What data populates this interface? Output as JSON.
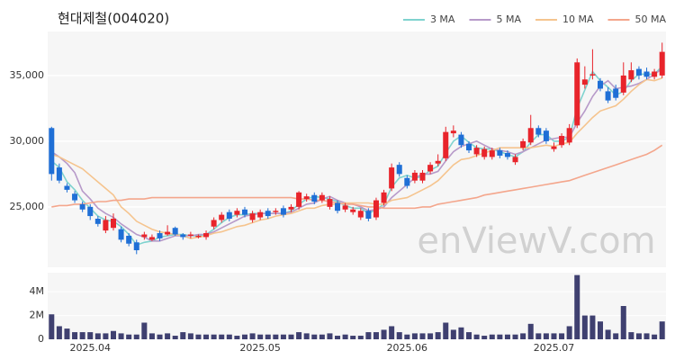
{
  "chart_data": {
    "type": "candlestick",
    "title": "현대제철(004020)",
    "watermark": "enViewV.com",
    "categories": [
      null,
      null,
      null,
      null,
      null,
      "2025.04",
      null,
      null,
      null,
      null,
      null,
      null,
      null,
      null,
      null,
      null,
      null,
      null,
      null,
      null,
      null,
      null,
      null,
      null,
      null,
      null,
      null,
      "2025.05",
      null,
      null,
      null,
      null,
      null,
      null,
      null,
      null,
      null,
      null,
      null,
      null,
      null,
      null,
      null,
      null,
      null,
      null,
      "2025.06",
      null,
      null,
      null,
      null,
      null,
      null,
      null,
      null,
      null,
      null,
      null,
      null,
      null,
      null,
      null,
      null,
      null,
      null,
      "2025.07",
      null,
      null,
      null,
      null,
      null,
      null,
      null,
      null,
      null,
      null,
      null,
      null,
      null,
      null
    ],
    "open": [
      31000,
      28000,
      26600,
      26000,
      25200,
      25000,
      24100,
      23200,
      23400,
      23300,
      22800,
      22300,
      22700,
      22500,
      23000,
      22900,
      23400,
      22900,
      22800,
      22700,
      22700,
      23500,
      24000,
      24600,
      24400,
      24800,
      24000,
      24200,
      24700,
      24600,
      24900,
      24800,
      25000,
      25600,
      25900,
      25500,
      25000,
      25300,
      24800,
      24600,
      24200,
      24700,
      24200,
      25300,
      26400,
      28200,
      27200,
      27000,
      27000,
      27700,
      28300,
      28700,
      30600,
      30500,
      29800,
      29000,
      28800,
      28800,
      29300,
      29100,
      28400,
      29500,
      29900,
      31000,
      30800,
      29400,
      29700,
      29900,
      31200,
      34300,
      35000,
      34600,
      33800,
      34000,
      33700,
      34700,
      35500,
      35300,
      34900,
      35000
    ],
    "high": [
      31100,
      28300,
      26800,
      26200,
      25400,
      25200,
      24300,
      24300,
      24500,
      23500,
      23000,
      22500,
      23100,
      22900,
      23200,
      23600,
      23500,
      23000,
      23100,
      22900,
      23200,
      24200,
      24600,
      24800,
      24900,
      25000,
      24700,
      24800,
      24900,
      24900,
      25100,
      25200,
      26200,
      26000,
      26100,
      26100,
      25800,
      25500,
      25300,
      25000,
      24900,
      24900,
      25700,
      26300,
      28300,
      28400,
      27400,
      27800,
      27800,
      28400,
      29000,
      31100,
      31200,
      30700,
      30000,
      29700,
      29600,
      29500,
      29500,
      29300,
      29000,
      30200,
      32000,
      31200,
      31000,
      29900,
      30600,
      31300,
      36300,
      35700,
      37000,
      34800,
      34100,
      34300,
      36000,
      36000,
      35700,
      35600,
      35500,
      37500
    ],
    "low": [
      27000,
      26800,
      26100,
      25300,
      24600,
      24000,
      23500,
      23000,
      23200,
      22300,
      22000,
      21400,
      22500,
      22400,
      22400,
      22800,
      22800,
      22500,
      22600,
      22600,
      22500,
      23300,
      23800,
      23900,
      24200,
      24200,
      23800,
      24000,
      24100,
      24400,
      24200,
      24600,
      24800,
      25400,
      25200,
      25300,
      24800,
      24500,
      24600,
      24400,
      24000,
      23900,
      24000,
      25100,
      26200,
      27300,
      26400,
      26800,
      26800,
      27500,
      28100,
      28500,
      30300,
      29500,
      29100,
      28800,
      28600,
      28600,
      28700,
      28600,
      28200,
      29300,
      29700,
      30300,
      29800,
      29200,
      29500,
      29700,
      31000,
      34000,
      34700,
      33800,
      32900,
      33100,
      33500,
      34500,
      34700,
      34700,
      34700,
      34800
    ],
    "close": [
      27500,
      27000,
      26300,
      25500,
      24800,
      24300,
      23700,
      24000,
      24100,
      22500,
      22200,
      21700,
      22900,
      22700,
      22600,
      23100,
      22900,
      22700,
      22900,
      22800,
      23000,
      24000,
      24400,
      24100,
      24700,
      24400,
      24500,
      24600,
      24300,
      24700,
      24400,
      25000,
      26100,
      25800,
      25400,
      25900,
      25600,
      24700,
      25100,
      24800,
      24700,
      24100,
      25500,
      26100,
      28000,
      27500,
      26600,
      27600,
      27600,
      28200,
      28500,
      30700,
      30800,
      29700,
      29300,
      29500,
      29400,
      29300,
      28900,
      28800,
      28800,
      30000,
      31000,
      30500,
      30000,
      29600,
      30400,
      31000,
      36000,
      34700,
      35100,
      34000,
      33100,
      33300,
      35000,
      35400,
      35000,
      34900,
      35300,
      36800
    ],
    "up_color": "#e8242b",
    "down_color": "#1f6fd6",
    "series": [
      {
        "name": "3 MA",
        "color": "#7fd3cf",
        "values": [
          28500,
          28000,
          26900,
          26300,
          25500,
          24900,
          24300,
          24000,
          23900,
          23500,
          22900,
          22100,
          22300,
          22400,
          22700,
          22800,
          22900,
          22900,
          22800,
          22800,
          22900,
          23300,
          23800,
          24200,
          24400,
          24400,
          24500,
          24500,
          24500,
          24500,
          24500,
          24700,
          25200,
          25600,
          25800,
          25700,
          25600,
          25400,
          25100,
          24900,
          24900,
          24500,
          24800,
          25200,
          26500,
          27200,
          27400,
          27200,
          27300,
          27800,
          28100,
          29100,
          30000,
          30400,
          29900,
          29500,
          29400,
          29400,
          29200,
          29000,
          28800,
          29200,
          29900,
          30500,
          30500,
          30000,
          30000,
          30300,
          32500,
          33900,
          35300,
          34600,
          34100,
          33500,
          33800,
          34600,
          35100,
          35100,
          35100,
          35700
        ]
      },
      {
        "name": "5 MA",
        "color": "#b79ac9",
        "values": [
          29200,
          28800,
          28300,
          27600,
          26200,
          25600,
          24900,
          24500,
          24200,
          23700,
          23300,
          22900,
          22700,
          22400,
          22400,
          22600,
          22800,
          22800,
          22800,
          22900,
          22900,
          23100,
          23400,
          23700,
          24000,
          24300,
          24400,
          24500,
          24500,
          24500,
          24500,
          24600,
          24900,
          25200,
          25300,
          25600,
          25800,
          25500,
          25300,
          25200,
          25000,
          24700,
          24800,
          25000,
          25700,
          26200,
          26700,
          27200,
          27500,
          27500,
          27700,
          28500,
          29200,
          29600,
          29800,
          30000,
          29700,
          29400,
          29300,
          29200,
          29000,
          29200,
          29500,
          29800,
          30100,
          30200,
          30300,
          30300,
          31400,
          32300,
          33400,
          34200,
          34600,
          34000,
          34100,
          34200,
          34400,
          34700,
          35100,
          35500
        ]
      },
      {
        "name": "10 MA",
        "color": "#f5c48e",
        "values": [
          29000,
          28800,
          28500,
          28200,
          27900,
          27400,
          26900,
          26400,
          25900,
          25000,
          24500,
          23900,
          23600,
          23300,
          23100,
          23000,
          22900,
          22800,
          22600,
          22700,
          22800,
          23000,
          23100,
          23300,
          23500,
          23600,
          23800,
          24000,
          24100,
          24300,
          24400,
          24500,
          24700,
          24900,
          24900,
          25100,
          25200,
          25200,
          25300,
          25300,
          25300,
          25300,
          25200,
          25200,
          25500,
          25600,
          25700,
          26000,
          26300,
          26600,
          27000,
          27600,
          28200,
          28600,
          28700,
          28900,
          29100,
          29300,
          29500,
          29500,
          29500,
          29500,
          29500,
          29600,
          29700,
          29600,
          29800,
          29900,
          30600,
          31200,
          31800,
          32300,
          32500,
          32700,
          33200,
          33800,
          34300,
          34700,
          34600,
          34800
        ]
      },
      {
        "name": "50 MA",
        "color": "#f4a68c",
        "values": [
          25000,
          25100,
          25100,
          25200,
          25200,
          25300,
          25400,
          25400,
          25500,
          25500,
          25600,
          25600,
          25600,
          25700,
          25700,
          25700,
          25700,
          25700,
          25700,
          25700,
          25700,
          25700,
          25700,
          25700,
          25700,
          25700,
          25700,
          25700,
          25700,
          25700,
          25700,
          25700,
          25600,
          25600,
          25500,
          25500,
          25400,
          25300,
          25200,
          25200,
          25100,
          25000,
          25000,
          24900,
          24900,
          24900,
          24900,
          24900,
          25000,
          25000,
          25200,
          25300,
          25400,
          25500,
          25600,
          25700,
          25900,
          26000,
          26100,
          26200,
          26300,
          26400,
          26500,
          26600,
          26700,
          26800,
          26900,
          27000,
          27200,
          27400,
          27600,
          27800,
          28000,
          28200,
          28400,
          28600,
          28800,
          29000,
          29300,
          29700
        ]
      }
    ],
    "ylim": [
      20400,
      38350
    ],
    "yticks": [
      {
        "value": 25000,
        "label": "25,000"
      },
      {
        "value": 30000,
        "label": "30,000"
      },
      {
        "value": 35000,
        "label": "35,000"
      }
    ],
    "grid": true,
    "legend": "top-right",
    "volume": {
      "color": "#3f4070",
      "values": [
        2100000,
        1100000,
        900000,
        600000,
        600000,
        600000,
        500000,
        500000,
        700000,
        500000,
        400000,
        400000,
        1400000,
        500000,
        400000,
        500000,
        300000,
        600000,
        500000,
        400000,
        400000,
        400000,
        400000,
        400000,
        300000,
        400000,
        500000,
        400000,
        400000,
        400000,
        400000,
        400000,
        600000,
        500000,
        400000,
        400000,
        500000,
        300000,
        400000,
        300000,
        300000,
        600000,
        600000,
        800000,
        1100000,
        600000,
        400000,
        500000,
        500000,
        500000,
        600000,
        1400000,
        800000,
        1000000,
        600000,
        400000,
        300000,
        400000,
        400000,
        400000,
        400000,
        500000,
        1300000,
        500000,
        500000,
        500000,
        500000,
        1100000,
        5400000,
        2000000,
        2000000,
        1500000,
        800000,
        500000,
        2800000,
        600000,
        500000,
        500000,
        400000,
        1500000
      ],
      "ylim": [
        0,
        5600000
      ],
      "yticks": [
        0,
        {
          "value": 2000000,
          "label": "2M"
        },
        {
          "value": 4000000,
          "label": "4M"
        }
      ]
    }
  }
}
